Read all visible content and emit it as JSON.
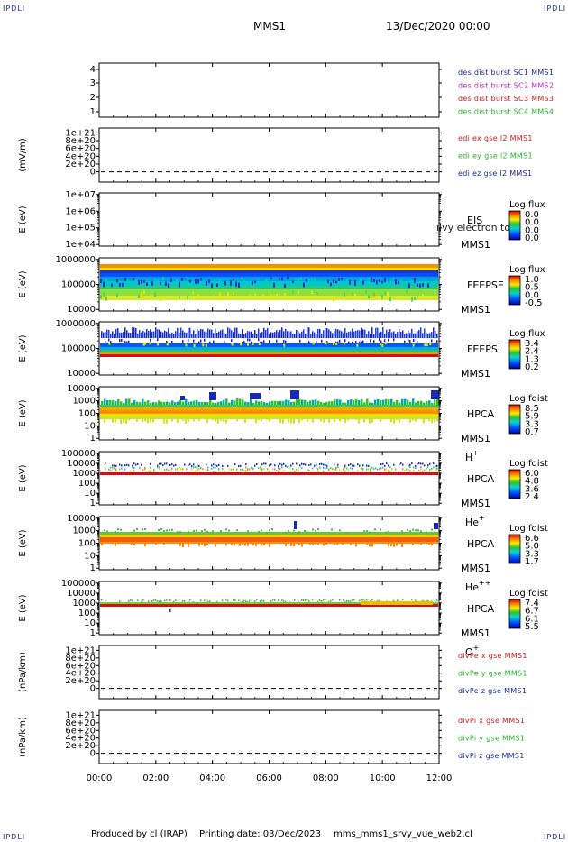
{
  "header": {
    "spacecraft": "MMS1",
    "date": "13/Dec/2020 00:00",
    "corner_tag": "IPDLI"
  },
  "footer": {
    "producer": "Produced by cl (IRAP)",
    "printing_date": "Printing date: 03/Dec/2023",
    "script": "mms_mms1_srvy_vue_web2.cl"
  },
  "x_axis": {
    "ticks": [
      "00:00",
      "02:00",
      "04:00",
      "06:00",
      "08:00",
      "10:00",
      "12:00"
    ]
  },
  "chart_data": [
    {
      "type": "line",
      "title": "",
      "ylabel": "",
      "ylim": [
        0.6,
        4.4
      ],
      "y_ticks": [
        "4",
        "3",
        "2",
        "1"
      ],
      "series": [
        {
          "name": "des dist burst SC1 MMS1",
          "color": "#1b2aa6"
        },
        {
          "name": "des dist burst SC2 MMS2",
          "color": "#c026c0"
        },
        {
          "name": "des dist burst SC3 MMS3",
          "color": "#d01c1c"
        },
        {
          "name": "des dist burst SC4 MMS4",
          "color": "#28b428"
        }
      ]
    },
    {
      "type": "line",
      "ylabel": "(mV/m)",
      "y_ticks": [
        "1e+21",
        "8e+20",
        "6e+20",
        "4e+20",
        "2e+20",
        "0"
      ],
      "series": [
        {
          "name": "edi ex gse l2 MMS1",
          "color": "#d01c1c"
        },
        {
          "name": "edi ey gse l2 MMS1",
          "color": "#28b428"
        },
        {
          "name": "edi ez gse l2 MMS1",
          "color": "#1b2aa6"
        }
      ]
    },
    {
      "type": "heatmap",
      "ylabel": "E (eV)",
      "y_ticks": [
        "1e+07",
        "1e+06",
        "1e+05",
        "1e+04"
      ],
      "instrument": "EIS",
      "overlay_text": "ilvy electron to",
      "spacecraft": "MMS1",
      "species": "",
      "colorbar_title": "Log flux",
      "colorbar_ticks": [
        "0.0",
        "0.0",
        "0.0",
        "0.0"
      ],
      "band": null
    },
    {
      "type": "heatmap",
      "ylabel": "E (eV)",
      "y_ticks": [
        "1000000",
        "100000",
        "10000"
      ],
      "instrument": "FEEPSE",
      "spacecraft": "MMS1",
      "species": "",
      "colorbar_title": "Log flux",
      "colorbar_ticks": [
        "1.0",
        "0.5",
        "0.0",
        "-0.5"
      ],
      "band": "feepse"
    },
    {
      "type": "heatmap",
      "ylabel": "E (eV)",
      "y_ticks": [
        "1000000",
        "100000",
        "10000"
      ],
      "instrument": "FEEPSI",
      "spacecraft": "MMS1",
      "species": "",
      "colorbar_title": "Log flux",
      "colorbar_ticks": [
        "3.4",
        "2.4",
        "1.3",
        "0.2"
      ],
      "band": "feepsi"
    },
    {
      "type": "heatmap",
      "ylabel": "E (eV)",
      "y_ticks": [
        "10000",
        "1000",
        "100",
        "10",
        "1"
      ],
      "instrument": "HPCA",
      "spacecraft": "MMS1",
      "species": "H",
      "species_sup": "+",
      "colorbar_title": "Log fdist",
      "colorbar_ticks": [
        "8.5",
        "5.9",
        "3.3",
        "0.7"
      ],
      "band": "hpca_h"
    },
    {
      "type": "heatmap",
      "ylabel": "E (eV)",
      "y_ticks": [
        "100000",
        "10000",
        "1000",
        "100",
        "10",
        "1"
      ],
      "instrument": "HPCA",
      "spacecraft": "MMS1",
      "species": "He",
      "species_sup": "+",
      "colorbar_title": "Log fdist",
      "colorbar_ticks": [
        "6.0",
        "4.8",
        "3.6",
        "2.4"
      ],
      "band": "hpca_he"
    },
    {
      "type": "heatmap",
      "ylabel": "E (eV)",
      "y_ticks": [
        "10000",
        "1000",
        "100",
        "10",
        "1"
      ],
      "instrument": "HPCA",
      "spacecraft": "MMS1",
      "species": "He",
      "species_sup": "++",
      "colorbar_title": "Log fdist",
      "colorbar_ticks": [
        "6.6",
        "5.0",
        "3.3",
        "1.7"
      ],
      "band": "hpca_hepp"
    },
    {
      "type": "heatmap",
      "ylabel": "E (eV)",
      "y_ticks": [
        "100000",
        "10000",
        "1000",
        "100",
        "10",
        "1"
      ],
      "instrument": "HPCA",
      "spacecraft": "MMS1",
      "species": "O",
      "species_sup": "+",
      "colorbar_title": "Log fdist",
      "colorbar_ticks": [
        "7.4",
        "6.7",
        "6.1",
        "5.5"
      ],
      "band": "hpca_o"
    },
    {
      "type": "line",
      "ylabel": "(nPa/km)",
      "y_ticks": [
        "1e+21",
        "8e+20",
        "6e+20",
        "4e+20",
        "2e+20",
        "0"
      ],
      "series": [
        {
          "name": "divPe x gse MMS1",
          "color": "#d01c1c"
        },
        {
          "name": "divPe y gse MMS1",
          "color": "#28b428"
        },
        {
          "name": "divPe z gse MMS1",
          "color": "#1b2aa6"
        }
      ]
    },
    {
      "type": "line",
      "ylabel": "(nPa/km)",
      "y_ticks": [
        "1e+21",
        "8e+20",
        "6e+20",
        "4e+20",
        "2e+20",
        "0"
      ],
      "series": [
        {
          "name": "divPi x gse MMS1",
          "color": "#d01c1c"
        },
        {
          "name": "divPi y gse MMS1",
          "color": "#28b428"
        },
        {
          "name": "divPi z gse MMS1",
          "color": "#1b2aa6"
        }
      ]
    }
  ]
}
